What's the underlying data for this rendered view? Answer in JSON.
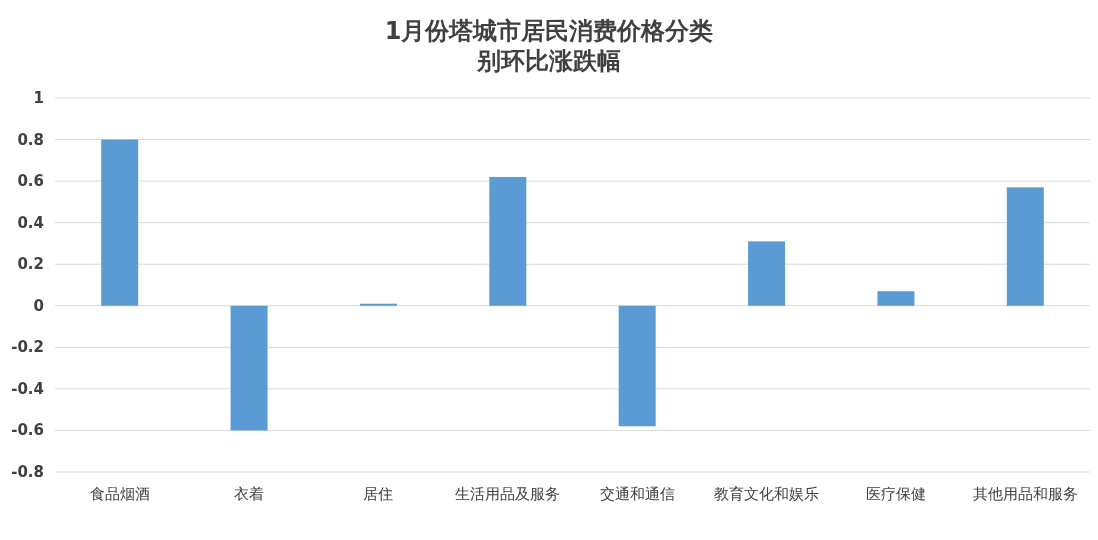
{
  "chart_data": {
    "type": "bar",
    "title": "1月份塔城市居民消费价格分类别环比涨跌幅",
    "categories": [
      "食品烟酒",
      "衣着",
      "居住",
      "生活用品及服务",
      "交通和通信",
      "教育文化和娱乐",
      "医疗保健",
      "其他用品和服务"
    ],
    "values": [
      0.8,
      -0.6,
      0.01,
      0.62,
      -0.58,
      0.31,
      0.07,
      0.57
    ],
    "color": "#5b9bd5",
    "ylim": [
      -0.8,
      1
    ],
    "yticks": [
      -0.8,
      -0.6,
      -0.4,
      -0.2,
      0,
      0.2,
      0.4,
      0.6,
      0.8,
      1
    ],
    "grid": "y"
  }
}
